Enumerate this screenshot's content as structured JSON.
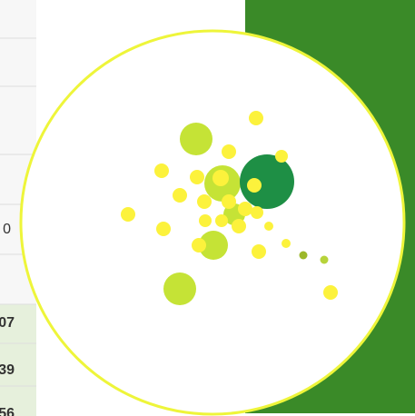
{
  "table": {
    "cells": [
      "0",
      "07",
      "39",
      "56"
    ]
  }
}
